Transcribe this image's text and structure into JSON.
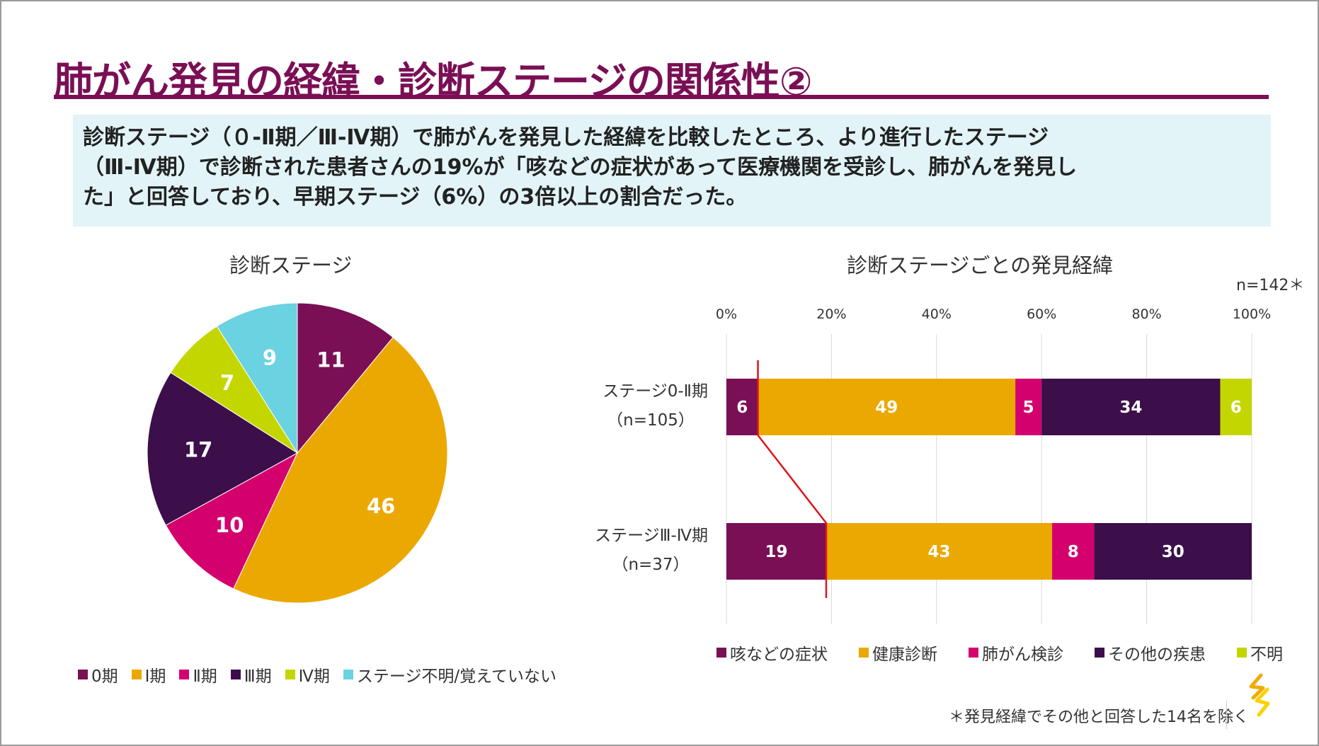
{
  "title": "肺がん発見の経緯・診断ステージの関係性②",
  "summary": {
    "lines": [
      "診断ステージ（０-Ⅱ期／Ⅲ-Ⅳ期）で肺がんを発見した経緯を比較したところ、より進行したステージ",
      "（Ⅲ-Ⅳ期）で診断された患者さんの19%が「咳などの症状があって医療機関を受診し、肺がんを発見し",
      "た」と回答しており、早期ステージ（6%）の3倍以上の割合だった。"
    ]
  },
  "chart_data": [
    {
      "type": "pie",
      "title": "診断ステージ",
      "categories": [
        "0期",
        "Ⅰ期",
        "Ⅱ期",
        "Ⅲ期",
        "Ⅳ期",
        "ステージ不明/覚えていない"
      ],
      "values": [
        11,
        46,
        10,
        17,
        7,
        9
      ],
      "colors": [
        "#7a0f55",
        "#eba800",
        "#d4006e",
        "#3c0f4b",
        "#c4d600",
        "#6ad2e0"
      ],
      "label_colors": [
        "#ffffff",
        "#ffffff",
        "#ffffff",
        "#ffffff",
        "#ffffff",
        "#ffffff"
      ],
      "legend_labels": [
        "0期",
        "Ⅰ期",
        "Ⅱ期",
        "Ⅲ期",
        "Ⅳ期",
        "ステージ不明/覚えていない"
      ],
      "legend_position": "bottom"
    },
    {
      "type": "bar",
      "orientation": "horizontal",
      "stacked": true,
      "title": "診断ステージごとの発見経緯",
      "n_note": "n=142＊",
      "xlim": [
        0,
        100
      ],
      "x_ticks": [
        "0%",
        "20%",
        "40%",
        "60%",
        "80%",
        "100%"
      ],
      "grid": true,
      "categories": [
        {
          "label": "ステージ0-Ⅱ期",
          "sub": "（n=105）"
        },
        {
          "label": "ステージⅢ-Ⅳ期",
          "sub": "（n=37）"
        }
      ],
      "series": [
        {
          "name": "咳などの症状",
          "color": "#7a0f55",
          "values": [
            6,
            19
          ]
        },
        {
          "name": "健康診断",
          "color": "#eba800",
          "values": [
            49,
            43
          ]
        },
        {
          "name": "肺がん検診",
          "color": "#d4006e",
          "values": [
            5,
            8
          ]
        },
        {
          "name": "その他の疾患",
          "color": "#3c0f4b",
          "values": [
            34,
            30
          ]
        },
        {
          "name": "不明",
          "color": "#c4d600",
          "values": [
            6,
            0
          ]
        }
      ],
      "value_labels": [
        [
          "6",
          "49",
          "5",
          "34",
          "6"
        ],
        [
          "19",
          "43",
          "8",
          "30",
          ""
        ]
      ],
      "connector_color": "#e0151c",
      "legend_position": "bottom"
    }
  ],
  "footnote": "＊発見経緯でその他と回答した14名を除く",
  "logo": {
    "icon": "company-logo-icon",
    "colors": [
      "#f0ab00",
      "#fcd200"
    ]
  }
}
